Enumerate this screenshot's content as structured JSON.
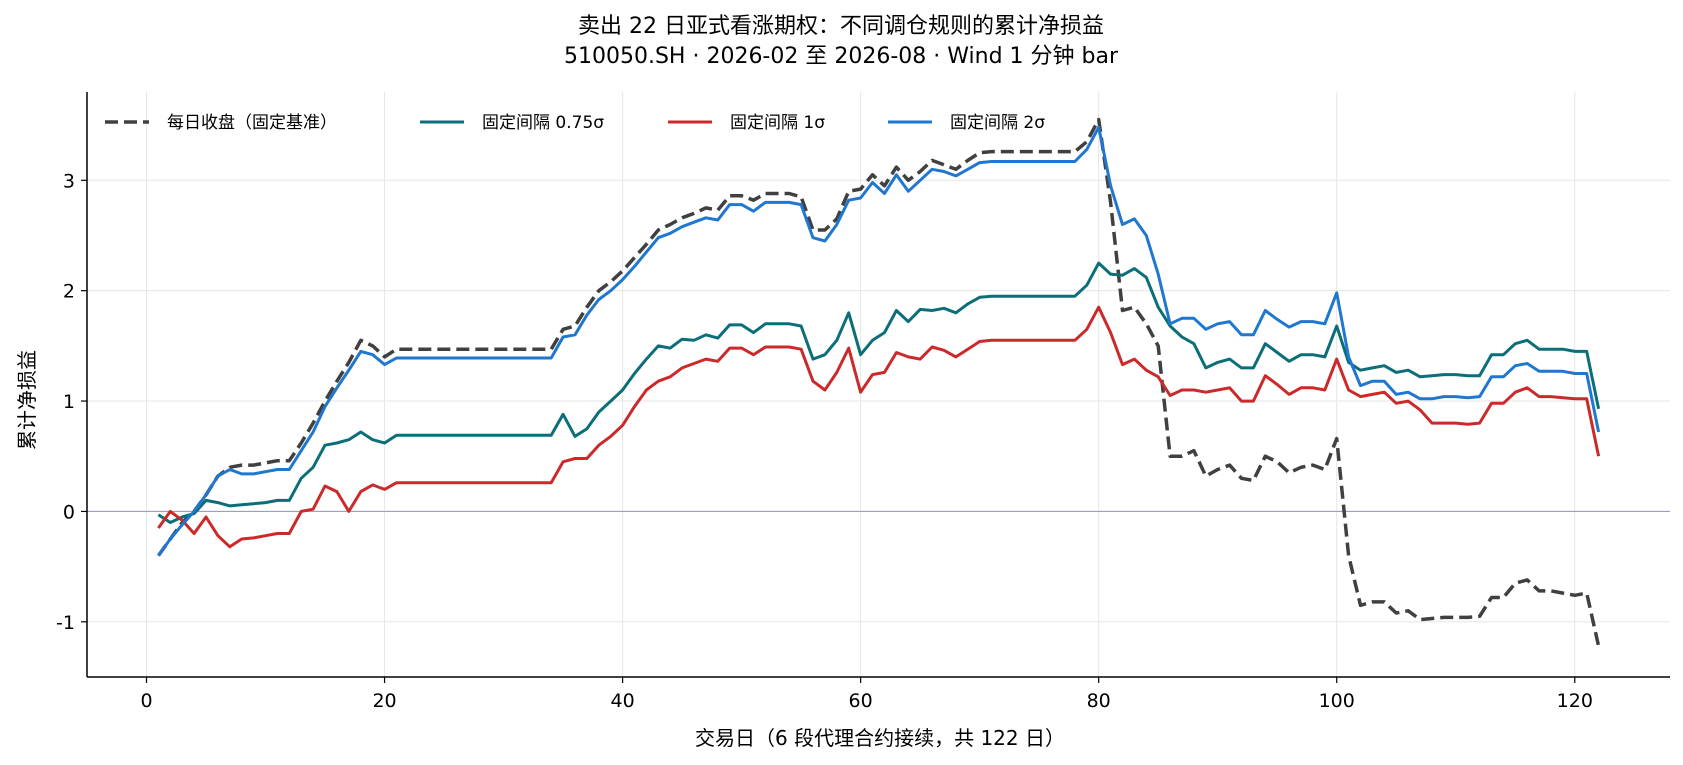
{
  "chart_data": {
    "type": "line",
    "title": "卖出 22 日亚式看涨期权：不同调仓规则的累计净损益",
    "subtitle": "510050.SH · 2026-02 至 2026-08 · Wind 1 分钟 bar",
    "xlabel": "交易日（6 段代理合约接续，共 122 日）",
    "ylabel": "累计净损益",
    "xlim": [
      -5,
      128
    ],
    "ylim": [
      -1.5,
      3.8
    ],
    "xticks": [
      0,
      20,
      40,
      60,
      80,
      100,
      120
    ],
    "yticks": [
      -1,
      0,
      1,
      2,
      3
    ],
    "ytick_labels": [
      "-1",
      "0",
      "1",
      "2",
      "3"
    ],
    "grid": true,
    "zero_line": true,
    "legend_position": "top-left",
    "x": [
      1,
      2,
      3,
      4,
      5,
      6,
      7,
      8,
      9,
      10,
      11,
      12,
      13,
      14,
      15,
      16,
      17,
      18,
      19,
      20,
      21,
      22,
      23,
      24,
      25,
      26,
      27,
      28,
      29,
      30,
      31,
      32,
      33,
      34,
      35,
      36,
      37,
      38,
      39,
      40,
      41,
      42,
      43,
      44,
      45,
      46,
      47,
      48,
      49,
      50,
      51,
      52,
      53,
      54,
      55,
      56,
      57,
      58,
      59,
      60,
      61,
      62,
      63,
      64,
      65,
      66,
      67,
      68,
      69,
      70,
      71,
      72,
      73,
      74,
      75,
      76,
      77,
      78,
      79,
      80,
      81,
      82,
      83,
      84,
      85,
      86,
      87,
      88,
      89,
      90,
      91,
      92,
      93,
      94,
      95,
      96,
      97,
      98,
      99,
      100,
      101,
      102,
      103,
      104,
      105,
      106,
      107,
      108,
      109,
      110,
      111,
      112,
      113,
      114,
      115,
      116,
      117,
      118,
      119,
      120,
      121,
      122
    ],
    "series": [
      {
        "name": "每日收盘（固定基准）",
        "color": "#404040",
        "dashed": true,
        "values": [
          -0.4,
          -0.25,
          -0.1,
          0.0,
          0.15,
          0.32,
          0.4,
          0.42,
          0.42,
          0.44,
          0.46,
          0.46,
          0.62,
          0.8,
          1.0,
          1.18,
          1.35,
          1.55,
          1.5,
          1.4,
          1.47,
          1.47,
          1.47,
          1.47,
          1.47,
          1.47,
          1.47,
          1.47,
          1.47,
          1.47,
          1.47,
          1.47,
          1.47,
          1.47,
          1.65,
          1.68,
          1.85,
          2.0,
          2.08,
          2.18,
          2.3,
          2.42,
          2.55,
          2.6,
          2.66,
          2.7,
          2.75,
          2.73,
          2.86,
          2.86,
          2.82,
          2.88,
          2.88,
          2.88,
          2.85,
          2.55,
          2.55,
          2.65,
          2.9,
          2.92,
          3.05,
          2.95,
          3.12,
          3.0,
          3.08,
          3.18,
          3.14,
          3.1,
          3.18,
          3.25,
          3.26,
          3.26,
          3.26,
          3.26,
          3.26,
          3.26,
          3.26,
          3.26,
          3.35,
          3.55,
          2.8,
          1.82,
          1.85,
          1.7,
          1.5,
          0.5,
          0.5,
          0.55,
          0.32,
          0.38,
          0.42,
          0.3,
          0.28,
          0.5,
          0.45,
          0.35,
          0.4,
          0.42,
          0.38,
          0.66,
          -0.4,
          -0.85,
          -0.82,
          -0.82,
          -0.92,
          -0.9,
          -0.98,
          -0.97,
          -0.96,
          -0.96,
          -0.96,
          -0.95,
          -0.78,
          -0.78,
          -0.65,
          -0.62,
          -0.72,
          -0.72,
          -0.74,
          -0.76,
          -0.74,
          -1.22
        ]
      },
      {
        "name": "固定间隔 0.75σ",
        "color": "#0c6e78",
        "dashed": false,
        "values": [
          -0.03,
          -0.1,
          -0.05,
          -0.02,
          0.1,
          0.08,
          0.05,
          0.06,
          0.07,
          0.08,
          0.1,
          0.1,
          0.3,
          0.4,
          0.6,
          0.62,
          0.65,
          0.72,
          0.65,
          0.62,
          0.69,
          0.69,
          0.69,
          0.69,
          0.69,
          0.69,
          0.69,
          0.69,
          0.69,
          0.69,
          0.69,
          0.69,
          0.69,
          0.69,
          0.88,
          0.68,
          0.75,
          0.9,
          1.0,
          1.1,
          1.25,
          1.38,
          1.5,
          1.48,
          1.56,
          1.55,
          1.6,
          1.57,
          1.69,
          1.69,
          1.62,
          1.7,
          1.7,
          1.7,
          1.68,
          1.38,
          1.42,
          1.55,
          1.8,
          1.42,
          1.55,
          1.62,
          1.82,
          1.72,
          1.83,
          1.82,
          1.84,
          1.8,
          1.88,
          1.94,
          1.95,
          1.95,
          1.95,
          1.95,
          1.95,
          1.95,
          1.95,
          1.95,
          2.05,
          2.25,
          2.15,
          2.14,
          2.2,
          2.12,
          1.85,
          1.68,
          1.58,
          1.52,
          1.3,
          1.35,
          1.38,
          1.3,
          1.3,
          1.52,
          1.44,
          1.36,
          1.42,
          1.42,
          1.4,
          1.68,
          1.35,
          1.28,
          1.3,
          1.32,
          1.26,
          1.28,
          1.22,
          1.23,
          1.24,
          1.24,
          1.23,
          1.23,
          1.42,
          1.42,
          1.52,
          1.55,
          1.47,
          1.47,
          1.47,
          1.45,
          1.45,
          0.93
        ]
      },
      {
        "name": "固定间隔 1σ",
        "color": "#cc2a2a",
        "dashed": false,
        "values": [
          -0.15,
          0.0,
          -0.08,
          -0.2,
          -0.05,
          -0.22,
          -0.32,
          -0.25,
          -0.24,
          -0.22,
          -0.2,
          -0.2,
          0.0,
          0.02,
          0.23,
          0.18,
          0.0,
          0.18,
          0.24,
          0.2,
          0.26,
          0.26,
          0.26,
          0.26,
          0.26,
          0.26,
          0.26,
          0.26,
          0.26,
          0.26,
          0.26,
          0.26,
          0.26,
          0.26,
          0.45,
          0.48,
          0.48,
          0.6,
          0.68,
          0.78,
          0.95,
          1.1,
          1.18,
          1.22,
          1.3,
          1.34,
          1.38,
          1.36,
          1.48,
          1.48,
          1.42,
          1.49,
          1.49,
          1.49,
          1.47,
          1.18,
          1.1,
          1.26,
          1.48,
          1.08,
          1.24,
          1.26,
          1.44,
          1.4,
          1.38,
          1.49,
          1.46,
          1.4,
          1.47,
          1.54,
          1.55,
          1.55,
          1.55,
          1.55,
          1.55,
          1.55,
          1.55,
          1.55,
          1.65,
          1.85,
          1.62,
          1.33,
          1.38,
          1.28,
          1.22,
          1.05,
          1.1,
          1.1,
          1.08,
          1.1,
          1.12,
          1.0,
          1.0,
          1.23,
          1.15,
          1.06,
          1.12,
          1.12,
          1.1,
          1.38,
          1.1,
          1.04,
          1.06,
          1.08,
          0.98,
          1.0,
          0.92,
          0.8,
          0.8,
          0.8,
          0.79,
          0.8,
          0.98,
          0.98,
          1.08,
          1.12,
          1.04,
          1.04,
          1.03,
          1.02,
          1.02,
          0.5
        ]
      },
      {
        "name": "固定间隔 2σ",
        "color": "#1f77d0",
        "dashed": false,
        "values": [
          -0.4,
          -0.25,
          -0.12,
          0.0,
          0.15,
          0.32,
          0.38,
          0.34,
          0.34,
          0.36,
          0.38,
          0.38,
          0.55,
          0.72,
          0.95,
          1.12,
          1.28,
          1.45,
          1.42,
          1.33,
          1.39,
          1.39,
          1.39,
          1.39,
          1.39,
          1.39,
          1.39,
          1.39,
          1.39,
          1.39,
          1.39,
          1.39,
          1.39,
          1.39,
          1.58,
          1.6,
          1.78,
          1.92,
          2.0,
          2.1,
          2.22,
          2.35,
          2.48,
          2.52,
          2.58,
          2.62,
          2.66,
          2.64,
          2.78,
          2.78,
          2.72,
          2.8,
          2.8,
          2.8,
          2.78,
          2.48,
          2.45,
          2.6,
          2.82,
          2.84,
          2.98,
          2.88,
          3.05,
          2.9,
          3.0,
          3.1,
          3.08,
          3.04,
          3.1,
          3.16,
          3.17,
          3.17,
          3.17,
          3.17,
          3.17,
          3.17,
          3.17,
          3.17,
          3.28,
          3.48,
          2.95,
          2.6,
          2.65,
          2.5,
          2.15,
          1.7,
          1.75,
          1.75,
          1.65,
          1.7,
          1.72,
          1.6,
          1.6,
          1.82,
          1.74,
          1.67,
          1.72,
          1.72,
          1.7,
          1.98,
          1.4,
          1.14,
          1.18,
          1.18,
          1.06,
          1.08,
          1.02,
          1.02,
          1.04,
          1.04,
          1.03,
          1.04,
          1.22,
          1.22,
          1.32,
          1.34,
          1.27,
          1.27,
          1.27,
          1.25,
          1.25,
          0.72
        ]
      }
    ]
  }
}
